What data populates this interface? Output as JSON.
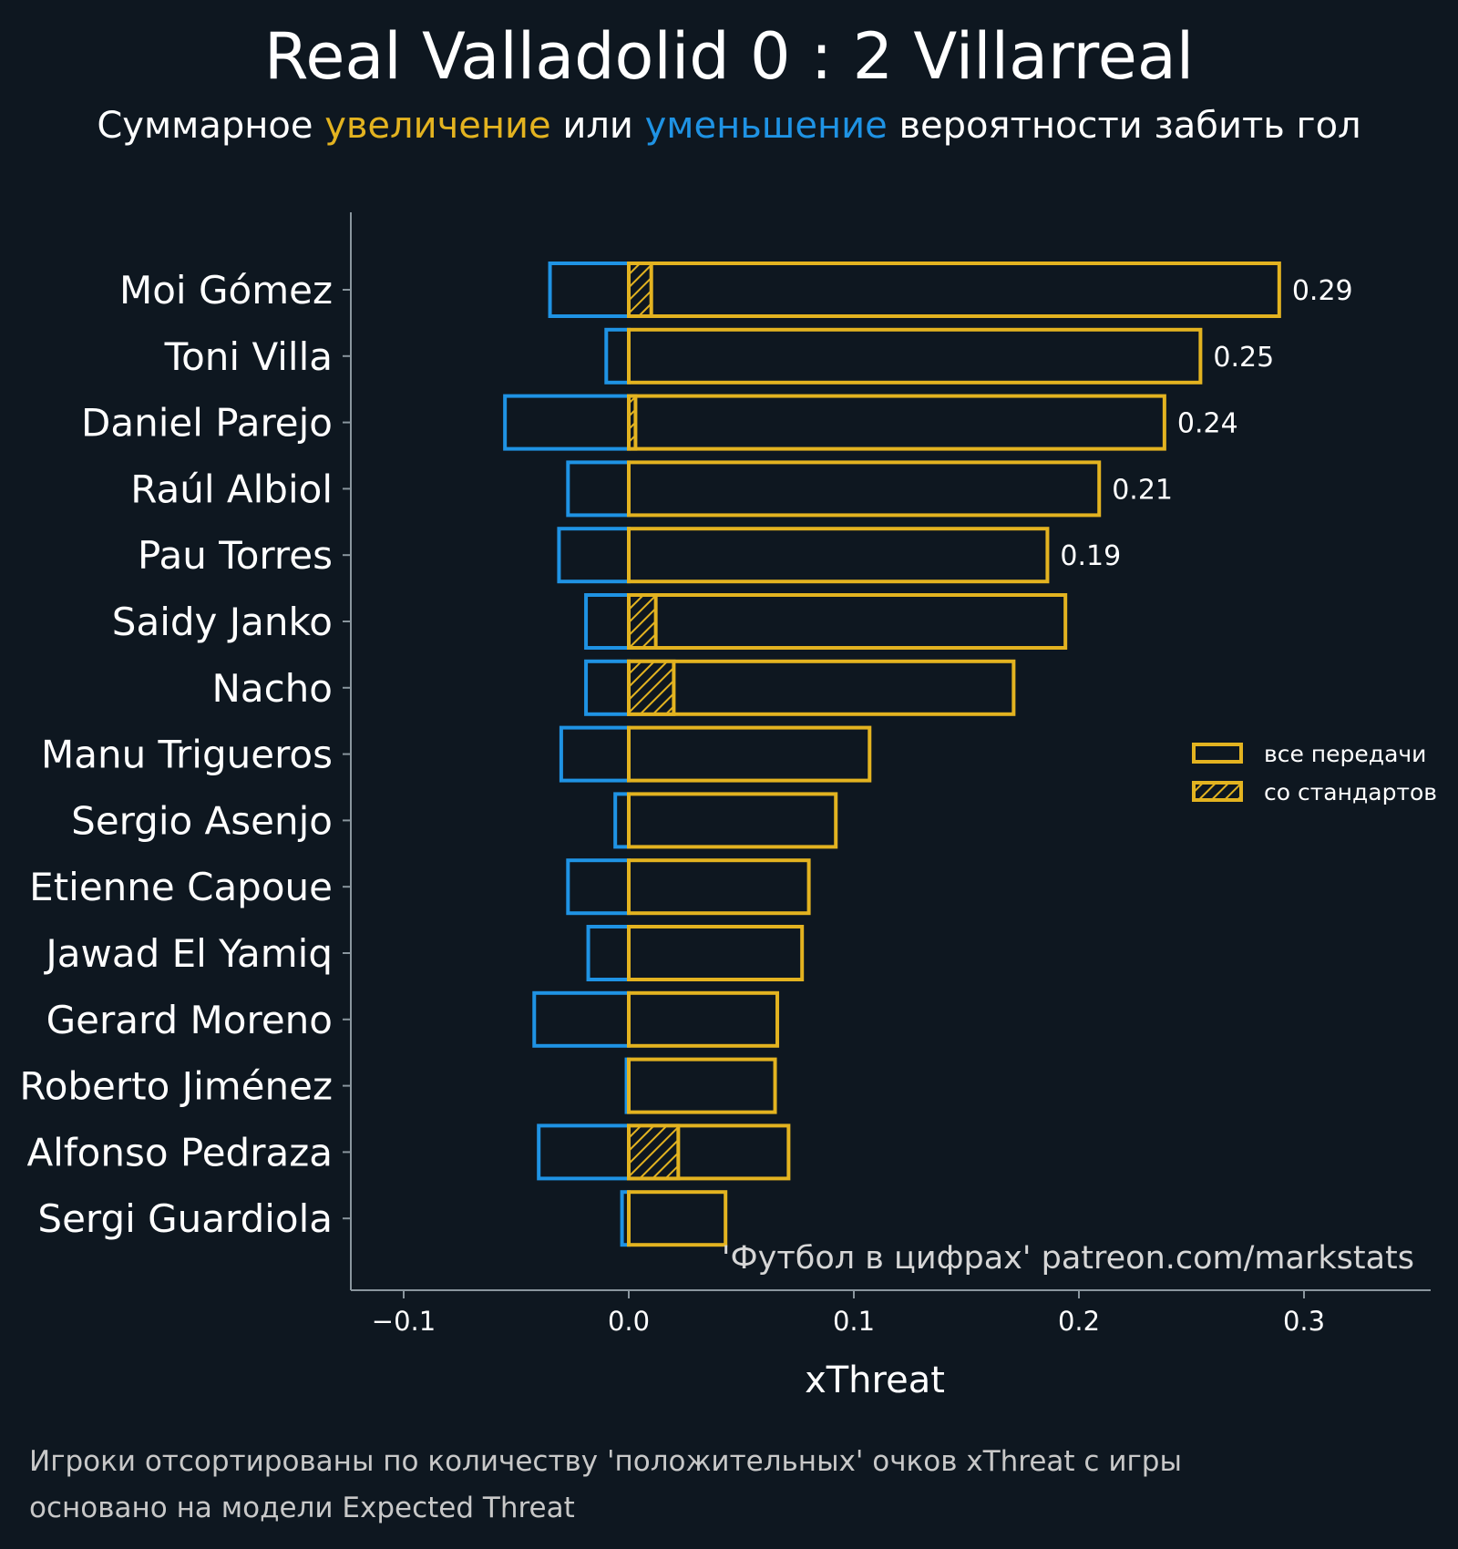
{
  "title": "Real Valladolid 0 : 2 Villarreal",
  "subtitle": {
    "prefix": "Суммарное ",
    "increase": "увеличение",
    "middle": " или ",
    "decrease": "уменьшение",
    "suffix": " вероятности забить гол"
  },
  "watermark": "'Футбол в цифрах' patreon.com/markstats",
  "notes": [
    "Игроки отсортированы по количеству 'положительных' очков xThreat с игры",
    "основано на модели Expected Threat"
  ],
  "colors": {
    "background": "#0e1720",
    "positive": "#e3b320",
    "negative": "#1f93e4",
    "axis": "#8a969e"
  },
  "chart_data": {
    "type": "bar",
    "orientation": "horizontal",
    "xlabel": "xThreat",
    "ylabel": "",
    "xlim": [
      -0.125,
      0.355
    ],
    "xticks": [
      -0.1,
      0.0,
      0.1,
      0.2,
      0.3
    ],
    "xtick_labels": [
      "−0.1",
      "0.0",
      "0.1",
      "0.2",
      "0.3"
    ],
    "grid": false,
    "legend_position": "right",
    "legend": [
      "все передачи",
      "со стандартов"
    ],
    "categories": [
      "Moi Gómez",
      "Toni Villa",
      "Daniel Parejo",
      "Raúl Albiol",
      "Pau Torres",
      "Saidy Janko",
      "Nacho",
      "Manu Trigueros",
      "Sergio Asenjo",
      "Etienne Capoue",
      "Jawad El Yamiq",
      "Gerard Moreno",
      "Roberto Jiménez",
      "Alfonso Pedraza",
      "Sergi Guardiola"
    ],
    "series": [
      {
        "name": "все передачи",
        "values": [
          0.289,
          0.254,
          0.238,
          0.209,
          0.186,
          0.194,
          0.171,
          0.107,
          0.092,
          0.08,
          0.077,
          0.066,
          0.065,
          0.071,
          0.043
        ]
      },
      {
        "values": [
          -0.035,
          -0.01,
          -0.055,
          -0.027,
          -0.031,
          -0.019,
          -0.019,
          -0.03,
          -0.006,
          -0.027,
          -0.018,
          -0.042,
          -0.001,
          -0.04,
          -0.003
        ]
      },
      {
        "name": "со стандартов",
        "values": [
          0.01,
          0,
          0.003,
          0,
          0,
          0.012,
          0.02,
          0,
          0,
          0,
          0,
          0,
          0,
          0.022,
          0
        ]
      }
    ],
    "data_labels": [
      "0.29",
      "0.25",
      "0.24",
      "0.21",
      "0.19",
      "",
      "",
      "",
      "",
      "",
      "",
      "",
      "",
      "",
      ""
    ]
  }
}
